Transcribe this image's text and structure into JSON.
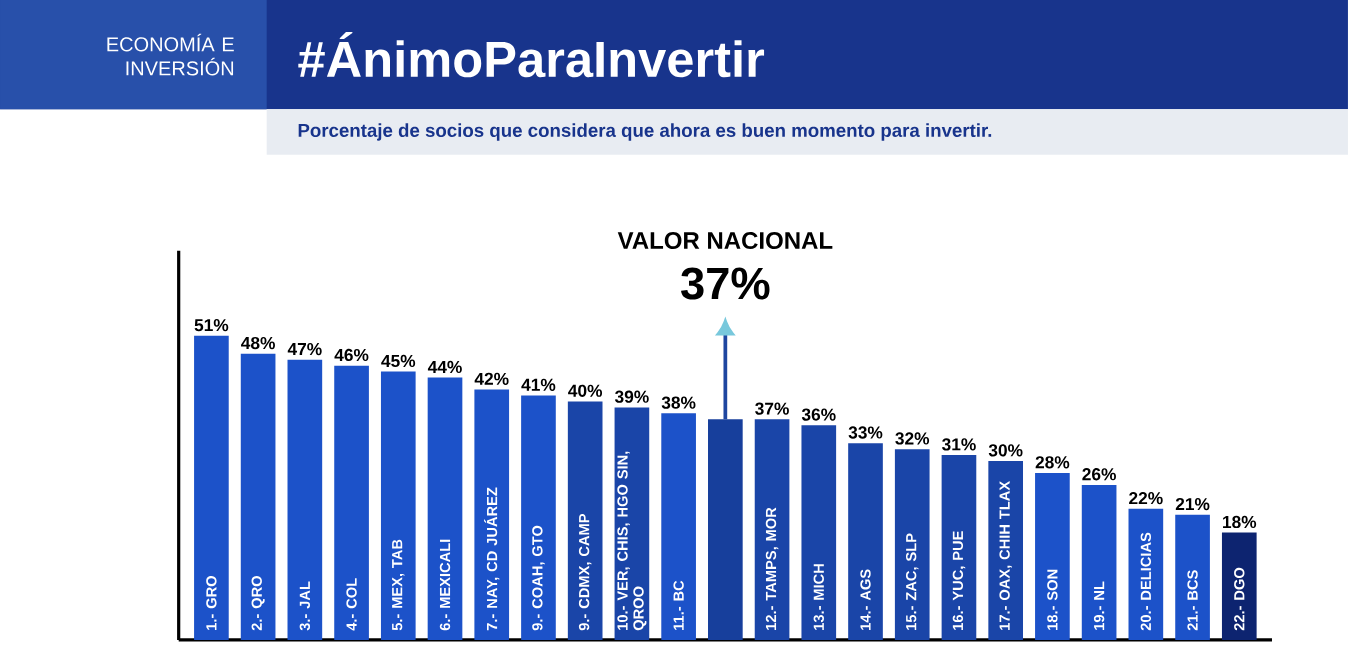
{
  "chart_data": {
    "type": "bar",
    "title": "#ÁnimoParaInvertir",
    "subtitle": "Porcentaje de socios que considera que ahora es buen momento para invertir.",
    "annotations": [
      "ECONOMÍA E INVERSIÓN",
      "VALOR NACIONAL"
    ],
    "categories": [
      "1.- GRO",
      "2.- QRO",
      "3.- JAL",
      "4.- COL",
      "5.- MEX, TAB",
      "6.- MEXICALI",
      "7.- NAY, CD JUÁREZ",
      "9.- COAH, GTO",
      "9.- CDMX, CAMP",
      "10.- VER, CHIS, HGO SIN, QROO",
      "11.- BC",
      null,
      "12.- TAMPS, MOR",
      "13.- MICH",
      "14.- AGS",
      "15.- ZAC, SLP",
      "16.- YUC, PUE",
      "17.- OAX, CHIH TLAX",
      "18.- SON",
      "19.- NL",
      "20.- DELICIAS",
      "21.- BCS",
      "22.- DGO"
    ],
    "values": [
      51,
      48,
      47,
      46,
      45,
      44,
      42,
      41,
      40,
      39,
      38,
      37,
      37,
      36,
      33,
      32,
      31,
      30,
      28,
      26,
      22,
      21,
      18
    ],
    "value_labels": [
      "51%",
      "48%",
      "47%",
      "46%",
      "45%",
      "44%",
      "42%",
      "41%",
      "40%",
      "39%",
      "38%",
      "37%",
      "37%",
      "36%",
      "33%",
      "32%",
      "31%",
      "30%",
      "28%",
      "26%",
      "22%",
      "21%",
      "18%"
    ],
    "colors": [
      "#1c52c9",
      "#1c52c9",
      "#1c52c9",
      "#1c52c9",
      "#1c52c9",
      "#1c52c9",
      "#1c52c9",
      "#1c52c9",
      "#1a45a8",
      "#1a45a8",
      "#1c52c9",
      "#173f9c",
      "#1a45a8",
      "#1a45a8",
      "#1a45a8",
      "#1a45a8",
      "#1a45a8",
      "#1a45a8",
      "#1c52c9",
      "#1c52c9",
      "#1c52c9",
      "#1c52c9",
      "#0d2470"
    ],
    "stacked": false
  }
}
